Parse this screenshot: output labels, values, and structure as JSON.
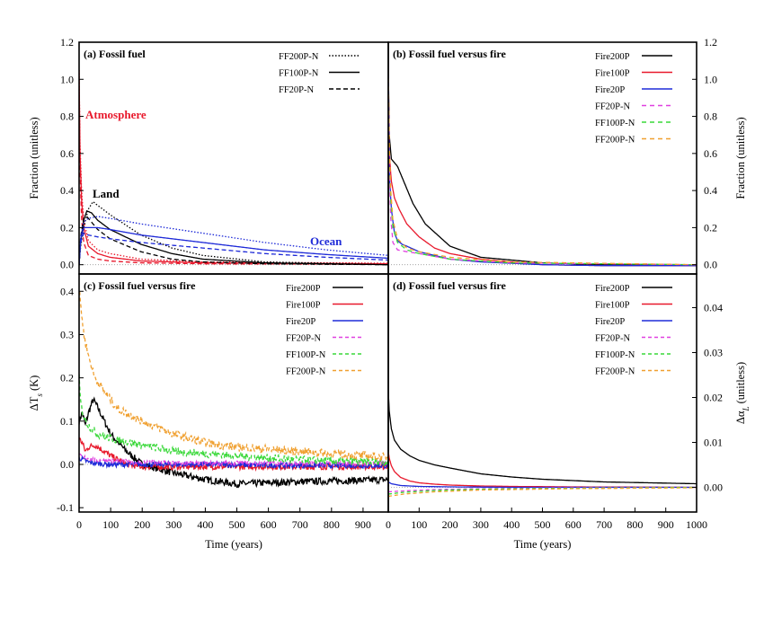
{
  "chart_data": [
    {
      "panel": "a",
      "type": "line",
      "title": "(a) Fossil fuel",
      "xlabel": "",
      "ylabel": "Fraction (unitless)",
      "xlim": [
        0,
        1000
      ],
      "ylim": [
        -0.05,
        1.2
      ],
      "yticks": [
        "0.0",
        "0.2",
        "0.4",
        "0.6",
        "0.8",
        "1.0",
        "1.2"
      ],
      "ytick_values": [
        0,
        0.2,
        0.4,
        0.6,
        0.8,
        1.0,
        1.2
      ],
      "legend": [
        "FF200P-N",
        "FF100P-N",
        "FF20P-N"
      ],
      "annotations": [
        {
          "label": "Atmosphere",
          "color": "#e8192c"
        },
        {
          "label": "Land",
          "color": "#000000"
        },
        {
          "label": "Ocean",
          "color": "#1f2bd8"
        }
      ],
      "series": [
        {
          "name": "Atmosphere FF20P-N",
          "color": "#e8192c",
          "dash": "5,3",
          "x": [
            0,
            3,
            8,
            15,
            30,
            60,
            100,
            200,
            400,
            1000
          ],
          "values": [
            1.0,
            0.5,
            0.25,
            0.12,
            0.05,
            0.03,
            0.02,
            0.01,
            0.005,
            0.002
          ]
        },
        {
          "name": "Atmosphere FF100P-N",
          "color": "#e8192c",
          "dash": "",
          "x": [
            0,
            3,
            8,
            15,
            30,
            60,
            100,
            200,
            400,
            1000
          ],
          "values": [
            1.05,
            0.6,
            0.35,
            0.2,
            0.1,
            0.06,
            0.04,
            0.02,
            0.01,
            0.005
          ]
        },
        {
          "name": "Atmosphere FF200P-N",
          "color": "#e8192c",
          "dash": "1.5,2",
          "x": [
            0,
            3,
            8,
            15,
            30,
            60,
            100,
            200,
            400,
            1000
          ],
          "values": [
            1.05,
            0.65,
            0.4,
            0.24,
            0.13,
            0.08,
            0.06,
            0.03,
            0.015,
            0.008
          ]
        },
        {
          "name": "Land FF20P-N",
          "color": "#000000",
          "dash": "5,3",
          "x": [
            0,
            5,
            15,
            25,
            40,
            60,
            100,
            200,
            300,
            400,
            600,
            1000
          ],
          "values": [
            0,
            0.15,
            0.25,
            0.26,
            0.23,
            0.19,
            0.14,
            0.07,
            0.03,
            0.015,
            0.005,
            0.0
          ]
        },
        {
          "name": "Land FF100P-N",
          "color": "#000000",
          "dash": "",
          "x": [
            0,
            5,
            15,
            25,
            40,
            60,
            100,
            200,
            300,
            400,
            600,
            1000
          ],
          "values": [
            0,
            0.12,
            0.24,
            0.29,
            0.28,
            0.24,
            0.19,
            0.11,
            0.06,
            0.03,
            0.01,
            0.0
          ]
        },
        {
          "name": "Land FF200P-N",
          "color": "#000000",
          "dash": "1.5,2",
          "x": [
            0,
            5,
            15,
            30,
            45,
            60,
            100,
            200,
            300,
            400,
            600,
            1000
          ],
          "values": [
            0,
            0.1,
            0.2,
            0.3,
            0.34,
            0.32,
            0.27,
            0.16,
            0.09,
            0.05,
            0.015,
            0.0
          ]
        },
        {
          "name": "Ocean FF20P-N",
          "color": "#1f2bd8",
          "dash": "5,3",
          "x": [
            0,
            5,
            15,
            30,
            60,
            100,
            200,
            400,
            600,
            800,
            1000
          ],
          "values": [
            0,
            0.12,
            0.17,
            0.16,
            0.15,
            0.14,
            0.12,
            0.09,
            0.06,
            0.04,
            0.025
          ]
        },
        {
          "name": "Ocean FF100P-N",
          "color": "#1f2bd8",
          "dash": "",
          "x": [
            0,
            5,
            15,
            30,
            60,
            100,
            200,
            400,
            600,
            800,
            1000
          ],
          "values": [
            0,
            0.14,
            0.2,
            0.2,
            0.2,
            0.19,
            0.16,
            0.12,
            0.08,
            0.055,
            0.035
          ]
        },
        {
          "name": "Ocean FF200P-N",
          "color": "#1f2bd8",
          "dash": "1.5,2",
          "x": [
            0,
            5,
            15,
            30,
            60,
            100,
            200,
            400,
            600,
            800,
            1000
          ],
          "values": [
            0,
            0.15,
            0.23,
            0.25,
            0.26,
            0.25,
            0.22,
            0.17,
            0.12,
            0.08,
            0.05
          ]
        }
      ]
    },
    {
      "panel": "b",
      "type": "line",
      "title": "(b) Fossil fuel versus fire",
      "xlabel": "",
      "ylabel": "Fraction (unitless)",
      "xlim": [
        0,
        1000
      ],
      "ylim": [
        -0.05,
        1.2
      ],
      "yticks": [
        "0.0",
        "0.2",
        "0.4",
        "0.6",
        "0.8",
        "1.0",
        "1.2"
      ],
      "ytick_values": [
        0,
        0.2,
        0.4,
        0.6,
        0.8,
        1.0,
        1.2
      ],
      "legend": [
        "Fire200P",
        "Fire100P",
        "Fire20P",
        "FF20P-N",
        "FF100P-N",
        "FF200P-N"
      ],
      "series": [
        {
          "name": "Fire200P",
          "color": "#000000",
          "dash": "",
          "x": [
            0,
            3,
            10,
            20,
            30,
            50,
            80,
            120,
            200,
            300,
            500,
            700,
            1000
          ],
          "values": [
            1.1,
            0.7,
            0.57,
            0.55,
            0.53,
            0.45,
            0.33,
            0.22,
            0.1,
            0.04,
            0.01,
            0.0,
            -0.005
          ]
        },
        {
          "name": "Fire100P",
          "color": "#e8192c",
          "dash": "",
          "x": [
            0,
            3,
            10,
            20,
            35,
            60,
            100,
            150,
            200,
            300,
            500,
            700,
            1000
          ],
          "values": [
            1.1,
            0.6,
            0.45,
            0.36,
            0.3,
            0.22,
            0.15,
            0.09,
            0.06,
            0.03,
            0.0,
            -0.005,
            -0.005
          ]
        },
        {
          "name": "Fire20P",
          "color": "#1f2bd8",
          "dash": "",
          "x": [
            0,
            3,
            10,
            20,
            30,
            45,
            60,
            100,
            150,
            200,
            300,
            500,
            700,
            1000
          ],
          "values": [
            1.1,
            0.5,
            0.3,
            0.17,
            0.13,
            0.11,
            0.1,
            0.07,
            0.05,
            0.03,
            0.015,
            0.0,
            -0.005,
            -0.005
          ]
        },
        {
          "name": "FF20P-N",
          "color": "#e040e0",
          "dash": "5,4",
          "x": [
            0,
            3,
            8,
            15,
            30,
            60,
            100,
            200,
            400,
            1000
          ],
          "values": [
            1.0,
            0.5,
            0.25,
            0.12,
            0.08,
            0.07,
            0.06,
            0.03,
            0.01,
            0.0
          ]
        },
        {
          "name": "FF100P-N",
          "color": "#38d838",
          "dash": "5,4",
          "x": [
            0,
            3,
            8,
            15,
            30,
            60,
            100,
            200,
            400,
            1000
          ],
          "values": [
            1.05,
            0.6,
            0.35,
            0.2,
            0.12,
            0.08,
            0.06,
            0.03,
            0.01,
            0.0
          ]
        },
        {
          "name": "FF200P-N",
          "color": "#f0a030",
          "dash": "5,4",
          "x": [
            0,
            3,
            8,
            15,
            30,
            60,
            100,
            200,
            400,
            1000
          ],
          "values": [
            1.05,
            0.65,
            0.4,
            0.24,
            0.14,
            0.09,
            0.07,
            0.04,
            0.015,
            0.0
          ]
        }
      ]
    },
    {
      "panel": "c",
      "type": "line",
      "title": "(c) Fossil fuel versus fire",
      "xlabel": "Time (years)",
      "ylabel": "ΔT_s (K)",
      "xlim": [
        0,
        1000
      ],
      "xlim_display": [
        0,
        980
      ],
      "ylim": [
        -0.11,
        0.44
      ],
      "yticks": [
        "-0.1",
        "0.0",
        "0.1",
        "0.2",
        "0.3",
        "0.4"
      ],
      "ytick_values": [
        -0.1,
        0,
        0.1,
        0.2,
        0.3,
        0.4
      ],
      "xticks": [
        "0",
        "100",
        "200",
        "300",
        "400",
        "500",
        "600",
        "700",
        "800",
        "900"
      ],
      "xtick_values": [
        0,
        100,
        200,
        300,
        400,
        500,
        600,
        700,
        800,
        900
      ],
      "legend": [
        "Fire200P",
        "Fire100P",
        "Fire20P",
        "FF20P-N",
        "FF100P-N",
        "FF200P-N"
      ],
      "series": [
        {
          "name": "Fire200P",
          "color": "#000000",
          "dash": "",
          "noise": 0.008,
          "x": [
            0,
            10,
            20,
            30,
            45,
            60,
            80,
            100,
            150,
            200,
            300,
            400,
            500,
            700,
            1000
          ],
          "values": [
            0.1,
            0.12,
            0.09,
            0.12,
            0.15,
            0.13,
            0.1,
            0.07,
            0.03,
            0.0,
            -0.02,
            -0.035,
            -0.045,
            -0.04,
            -0.035
          ]
        },
        {
          "name": "Fire100P",
          "color": "#e8192c",
          "dash": "",
          "noise": 0.007,
          "x": [
            0,
            10,
            20,
            30,
            50,
            70,
            100,
            150,
            200,
            300,
            500,
            1000
          ],
          "values": [
            0.06,
            0.05,
            0.03,
            0.04,
            0.045,
            0.035,
            0.02,
            0.0,
            -0.005,
            -0.005,
            -0.005,
            -0.005
          ]
        },
        {
          "name": "Fire20P",
          "color": "#1f2bd8",
          "dash": "",
          "noise": 0.006,
          "x": [
            0,
            10,
            30,
            60,
            100,
            200,
            400,
            600,
            1000
          ],
          "values": [
            0.015,
            0.012,
            0.005,
            0.002,
            0.0,
            0.0,
            0.0,
            -0.002,
            -0.003
          ]
        },
        {
          "name": "FF20P-N",
          "color": "#e040e0",
          "dash": "4,3",
          "noise": 0.005,
          "x": [
            0,
            20,
            50,
            100,
            200,
            400,
            700,
            1000
          ],
          "values": [
            0.02,
            0.015,
            0.01,
            0.008,
            0.005,
            0.003,
            0.002,
            0.002
          ]
        },
        {
          "name": "FF100P-N",
          "color": "#38d838",
          "dash": "4,3",
          "noise": 0.009,
          "x": [
            0,
            5,
            15,
            30,
            60,
            100,
            200,
            300,
            400,
            500,
            700,
            1000
          ],
          "values": [
            0.2,
            0.14,
            0.11,
            0.09,
            0.07,
            0.06,
            0.045,
            0.03,
            0.025,
            0.02,
            0.01,
            0.005
          ]
        },
        {
          "name": "FF200P-N",
          "color": "#f0a030",
          "dash": "4,3",
          "noise": 0.01,
          "x": [
            0,
            5,
            15,
            30,
            50,
            80,
            120,
            200,
            300,
            400,
            500,
            700,
            900,
            1000
          ],
          "values": [
            0.4,
            0.37,
            0.3,
            0.25,
            0.2,
            0.17,
            0.13,
            0.1,
            0.07,
            0.05,
            0.04,
            0.03,
            0.02,
            0.015
          ]
        }
      ]
    },
    {
      "panel": "d",
      "type": "line",
      "title": "(d) Fossil fuel versus fire",
      "xlabel": "Time (years)",
      "ylabel": "Δα_L (unitless)",
      "xlim": [
        0,
        1000
      ],
      "ylim": [
        -0.0055,
        0.0475
      ],
      "yticks": [
        "0.00",
        "0.01",
        "0.02",
        "0.03",
        "0.04"
      ],
      "ytick_values": [
        0,
        0.01,
        0.02,
        0.03,
        0.04
      ],
      "xticks": [
        "0",
        "100",
        "200",
        "300",
        "400",
        "500",
        "600",
        "700",
        "800",
        "900",
        "1000"
      ],
      "xtick_values": [
        0,
        100,
        200,
        300,
        400,
        500,
        600,
        700,
        800,
        900,
        1000
      ],
      "legend": [
        "Fire200P",
        "Fire100P",
        "Fire20P",
        "FF20P-N",
        "FF100P-N",
        "FF200P-N"
      ],
      "series": [
        {
          "name": "Fire200P",
          "color": "#000000",
          "dash": "",
          "x": [
            0,
            3,
            10,
            20,
            40,
            70,
            100,
            150,
            200,
            300,
            400,
            500,
            700,
            1000
          ],
          "values": [
            0.0215,
            0.017,
            0.013,
            0.0105,
            0.0085,
            0.007,
            0.006,
            0.005,
            0.0043,
            0.003,
            0.0023,
            0.0018,
            0.0012,
            0.0008
          ]
        },
        {
          "name": "Fire100P",
          "color": "#e8192c",
          "dash": "",
          "x": [
            0,
            3,
            10,
            20,
            40,
            70,
            100,
            150,
            200,
            300,
            400,
            600,
            1000
          ],
          "values": [
            0.008,
            0.0065,
            0.0048,
            0.0035,
            0.0022,
            0.0014,
            0.001,
            0.0007,
            0.0005,
            0.0003,
            0.0002,
            0.0001,
            0.0
          ]
        },
        {
          "name": "Fire20P",
          "color": "#1f2bd8",
          "dash": "",
          "x": [
            0,
            10,
            40,
            100,
            200,
            400,
            1000
          ],
          "values": [
            0.0012,
            0.0008,
            0.0004,
            0.0002,
            0.0001,
            0.0,
            0.0
          ]
        },
        {
          "name": "FF20P-N",
          "color": "#e040e0",
          "dash": "4,3",
          "x": [
            0,
            50,
            150,
            300,
            600,
            1000
          ],
          "values": [
            -0.001,
            -0.0008,
            -0.0005,
            -0.0003,
            -0.0001,
            0.0
          ]
        },
        {
          "name": "FF100P-N",
          "color": "#38d838",
          "dash": "4,3",
          "x": [
            0,
            50,
            150,
            300,
            600,
            1000
          ],
          "values": [
            -0.0015,
            -0.0011,
            -0.0007,
            -0.0004,
            -0.0002,
            0.0
          ]
        },
        {
          "name": "FF200P-N",
          "color": "#f0a030",
          "dash": "4,3",
          "x": [
            0,
            50,
            150,
            300,
            600,
            1000
          ],
          "values": [
            -0.002,
            -0.0015,
            -0.001,
            -0.0006,
            -0.0003,
            -0.0001
          ]
        }
      ]
    }
  ]
}
